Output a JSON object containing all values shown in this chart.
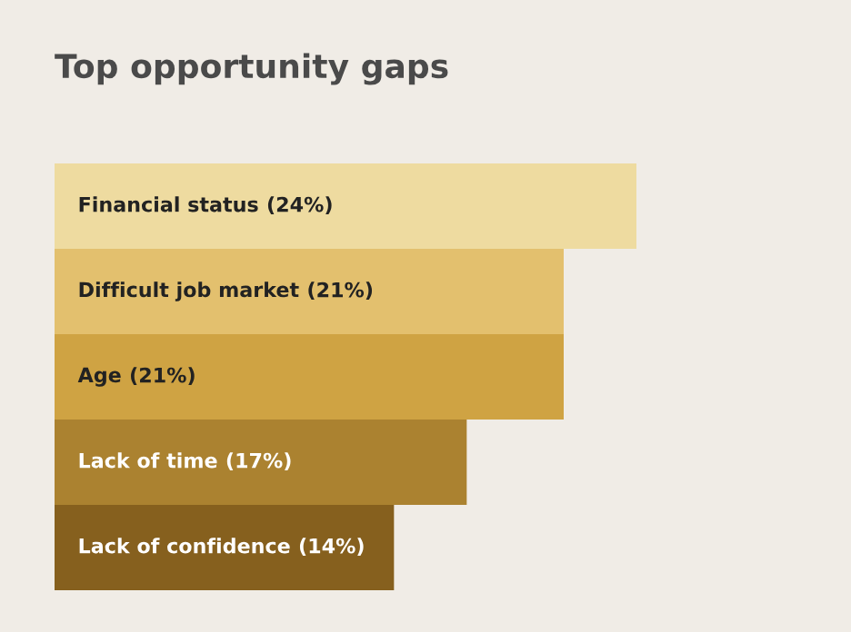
{
  "chart_data": {
    "type": "bar",
    "orientation": "horizontal",
    "title": "Top opportunity gaps",
    "categories": [
      "Financial status",
      "Difficult job market",
      "Age",
      "Lack of time",
      "Lack of confidence"
    ],
    "values": [
      24,
      21,
      21,
      17,
      14
    ],
    "value_labels": [
      "(24%)",
      "(21%)",
      "(21%)",
      "(17%)",
      "(14%)"
    ],
    "colors": [
      "#eedba0",
      "#e3c06e",
      "#cfa343",
      "#ab8230",
      "#86601e"
    ],
    "legend": false
  }
}
